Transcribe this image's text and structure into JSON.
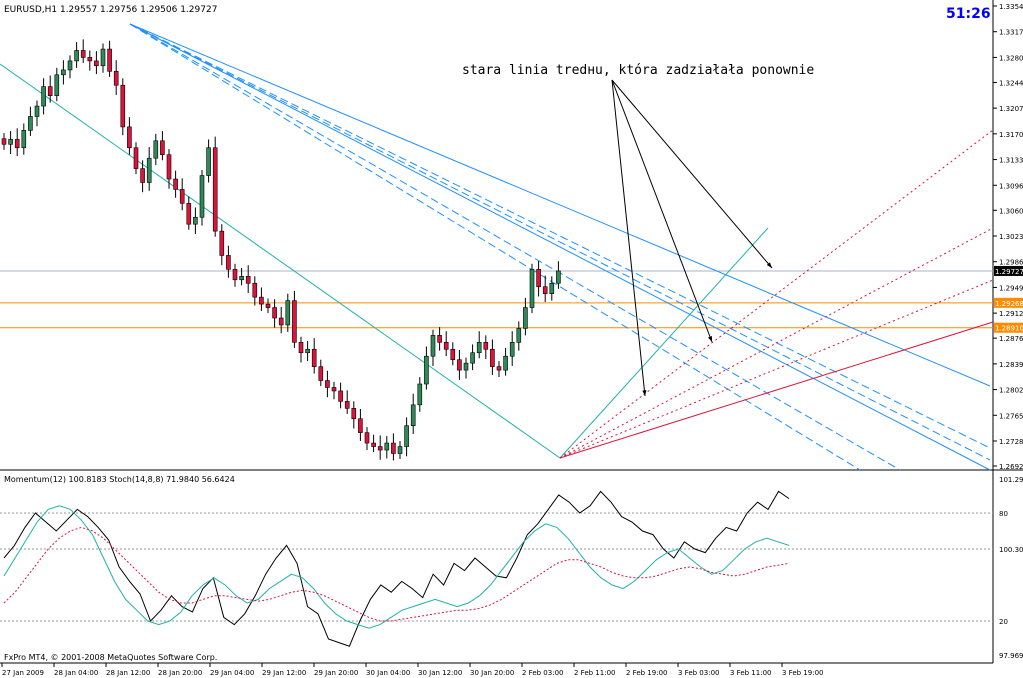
{
  "header": {
    "symbol_ohlc": "EURUSD,H1  1.29557 1.29756 1.29506 1.29727",
    "timer": "51:26"
  },
  "annotation": {
    "text": "stara linia tredнu, która zadziałała ponownie"
  },
  "indicator_header": "Momentum(12) 100.8183  Stoch(14,8,8) 71.9840 56.6424",
  "footer": "FxPro MT4, © 2001-2008 MetaQuotes Software Corp.",
  "colors": {
    "bull_candle": "#2e8b57",
    "bear_candle": "#dc143c",
    "trend_blue": "#1e90ff",
    "aqua_line": "#20b2aa",
    "orange_level": "#ff8c00",
    "red_line": "#dc143c",
    "price_tag": "#000000",
    "timer": "#0000ff"
  },
  "chart_data": [
    {
      "type": "candlestick",
      "title": "EURUSD,H1",
      "y_ticks": [
        "1.33540",
        "1.33170",
        "1.32800",
        "1.32440",
        "1.32070",
        "1.31700",
        "1.31330",
        "1.30960",
        "1.30600",
        "1.30230",
        "1.29860",
        "1.29490",
        "1.29120",
        "1.28760",
        "1.28390",
        "1.28020",
        "1.27650",
        "1.27280",
        "1.26920"
      ],
      "ylim": [
        1.2692,
        1.3354
      ],
      "x_ticks": [
        "27 Jan 2009",
        "28 Jan 04:00",
        "28 Jan 12:00",
        "28 Jan 20:00",
        "29 Jan 04:00",
        "29 Jan 12:00",
        "29 Jan 20:00",
        "30 Jan 04:00",
        "30 Jan 12:00",
        "30 Jan 20:00",
        "2 Feb 03:00",
        "2 Feb 11:00",
        "2 Feb 19:00",
        "3 Feb 03:00",
        "3 Feb 11:00",
        "3 Feb 19:00"
      ],
      "price_labels": [
        {
          "value": 1.29727,
          "label": "1.29727"
        },
        {
          "value": 1.29268,
          "label": "1.29268"
        },
        {
          "value": 1.2891,
          "label": "1.28910"
        }
      ],
      "levels": [
        1.29268,
        1.2891
      ],
      "closes": [
        1.3155,
        1.3162,
        1.315,
        1.3175,
        1.3195,
        1.321,
        1.3238,
        1.3225,
        1.3255,
        1.3262,
        1.3275,
        1.329,
        1.328,
        1.3275,
        1.3268,
        1.3292,
        1.326,
        1.324,
        1.318,
        1.315,
        1.312,
        1.31,
        1.3135,
        1.316,
        1.314,
        1.3105,
        1.309,
        1.307,
        1.304,
        1.305,
        1.311,
        1.315,
        1.303,
        1.2995,
        1.2975,
        1.296,
        1.2965,
        1.2955,
        1.2935,
        1.2925,
        1.292,
        1.2905,
        1.2895,
        1.293,
        1.287,
        1.2855,
        1.286,
        1.2835,
        1.2815,
        1.2805,
        1.28,
        1.2785,
        1.2775,
        1.276,
        1.274,
        1.2725,
        1.272,
        1.2715,
        1.2725,
        1.271,
        1.272,
        1.275,
        1.278,
        1.281,
        1.285,
        1.288,
        1.287,
        1.286,
        1.2845,
        1.283,
        1.284,
        1.2855,
        1.287,
        1.286,
        1.2835,
        1.283,
        1.285,
        1.287,
        1.289,
        1.292,
        1.2975,
        1.295,
        1.294,
        1.2955,
        1.29727
      ]
    },
    {
      "type": "line",
      "title": "Momentum(12) / Stoch(14,8,8)",
      "y_ticks": [
        "101.29139",
        "100.30460",
        "97.96900"
      ],
      "stoch_levels": [
        "80",
        "20"
      ],
      "series": [
        {
          "name": "Momentum(12)",
          "values": [
            55,
            62,
            72,
            80,
            75,
            70,
            76,
            82,
            78,
            72,
            65,
            50,
            42,
            35,
            20,
            26,
            34,
            28,
            25,
            38,
            44,
            22,
            18,
            24,
            34,
            46,
            55,
            62,
            52,
            28,
            24,
            10,
            8,
            6,
            20,
            32,
            40,
            36,
            42,
            38,
            33,
            46,
            40,
            52,
            48,
            55,
            50,
            45,
            44,
            55,
            68,
            74,
            82,
            90,
            86,
            80,
            84,
            92,
            86,
            78,
            75,
            70,
            68,
            60,
            55,
            64,
            60,
            58,
            66,
            72,
            70,
            80,
            86,
            82,
            92,
            88
          ]
        },
        {
          "name": "Stoch(14,8,8)",
          "values": [
            45,
            55,
            65,
            75,
            82,
            84,
            82,
            76,
            68,
            55,
            42,
            32,
            26,
            20,
            18,
            20,
            25,
            34,
            40,
            44,
            40,
            34,
            30,
            32,
            38,
            42,
            46,
            44,
            38,
            30,
            24,
            20,
            18,
            16,
            18,
            22,
            26,
            28,
            30,
            32,
            30,
            28,
            30,
            34,
            40,
            48,
            56,
            64,
            70,
            74,
            72,
            66,
            58,
            50,
            44,
            40,
            38,
            42,
            48,
            54,
            58,
            60,
            55,
            50,
            46,
            48,
            54,
            60,
            64,
            66,
            64,
            62
          ]
        },
        {
          "name": "Stoch signal",
          "values": [
            30,
            36,
            44,
            52,
            60,
            66,
            70,
            72,
            70,
            66,
            60,
            54,
            48,
            42,
            36,
            32,
            30,
            30,
            32,
            34,
            34,
            33,
            32,
            31,
            32,
            34,
            36,
            37,
            36,
            34,
            31,
            28,
            25,
            22,
            20,
            20,
            21,
            22,
            23,
            24,
            25,
            26,
            26,
            27,
            29,
            32,
            36,
            40,
            44,
            48,
            52,
            54,
            54,
            52,
            50,
            47,
            45,
            44,
            44,
            45,
            47,
            49,
            50,
            49,
            47,
            46,
            45,
            46,
            48,
            50,
            51,
            52
          ]
        }
      ]
    }
  ]
}
